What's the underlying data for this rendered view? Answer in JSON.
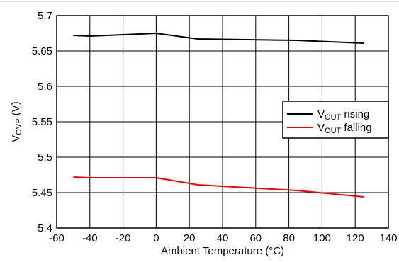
{
  "chart_data": {
    "type": "line",
    "title": "",
    "xlabel": "Ambient Temperature (°C)",
    "ylabel_main": "V",
    "ylabel_sub": "OVP",
    "ylabel_unit": " (V)",
    "xlim": [
      -60,
      140
    ],
    "ylim": [
      5.4,
      5.7
    ],
    "xticks": [
      -60,
      -40,
      -20,
      0,
      20,
      40,
      60,
      80,
      100,
      120,
      140
    ],
    "yticks": [
      5.4,
      5.45,
      5.5,
      5.55,
      5.6,
      5.65,
      5.7
    ],
    "xtick_labels": [
      "-60",
      "-40",
      "-20",
      "0",
      "20",
      "40",
      "60",
      "80",
      "100",
      "120",
      "140"
    ],
    "ytick_labels": [
      "5.4",
      "5.45",
      "5.5",
      "5.55",
      "5.6",
      "5.65",
      "5.7"
    ],
    "grid": true,
    "legend_position": "right",
    "series": [
      {
        "name_main": "V",
        "name_sub": "OUT",
        "name_rest": " rising",
        "color": "#000000",
        "x": [
          -50,
          -40,
          0,
          25,
          85,
          125
        ],
        "y": [
          5.672,
          5.671,
          5.675,
          5.667,
          5.665,
          5.661
        ]
      },
      {
        "name_main": "V",
        "name_sub": "OUT",
        "name_rest": " falling",
        "color": "#ee0000",
        "x": [
          -50,
          -40,
          0,
          25,
          85,
          125
        ],
        "y": [
          5.472,
          5.471,
          5.471,
          5.461,
          5.453,
          5.444
        ]
      }
    ]
  }
}
